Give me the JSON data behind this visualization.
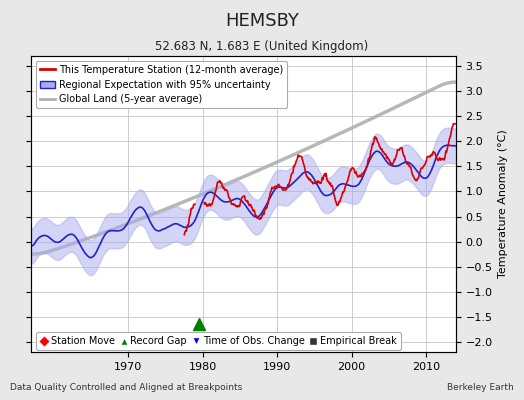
{
  "title": "HEMSBY",
  "subtitle": "52.683 N, 1.683 E (United Kingdom)",
  "ylabel": "Temperature Anomaly (°C)",
  "xlabel_left": "Data Quality Controlled and Aligned at Breakpoints",
  "xlabel_right": "Berkeley Earth",
  "ylim": [
    -2.2,
    3.7
  ],
  "xlim": [
    1957,
    2014
  ],
  "yticks": [
    -2,
    -1.5,
    -1,
    -0.5,
    0,
    0.5,
    1,
    1.5,
    2,
    2.5,
    3,
    3.5
  ],
  "xticks": [
    1970,
    1980,
    1990,
    2000,
    2010
  ],
  "bg_color": "#e8e8e8",
  "plot_bg_color": "#ffffff",
  "grid_color": "#c0c0c0",
  "red_color": "#dd0000",
  "blue_color": "#2222cc",
  "blue_fill_color": "#aaaaee",
  "gray_color": "#b0b0b0",
  "record_gap_x": 1979.5,
  "record_gap_y": -1.65,
  "legend_items": [
    "This Temperature Station (12-month average)",
    "Regional Expectation with 95% uncertainty",
    "Global Land (5-year average)"
  ],
  "marker_legend": [
    "Station Move",
    "Record Gap",
    "Time of Obs. Change",
    "Empirical Break"
  ]
}
